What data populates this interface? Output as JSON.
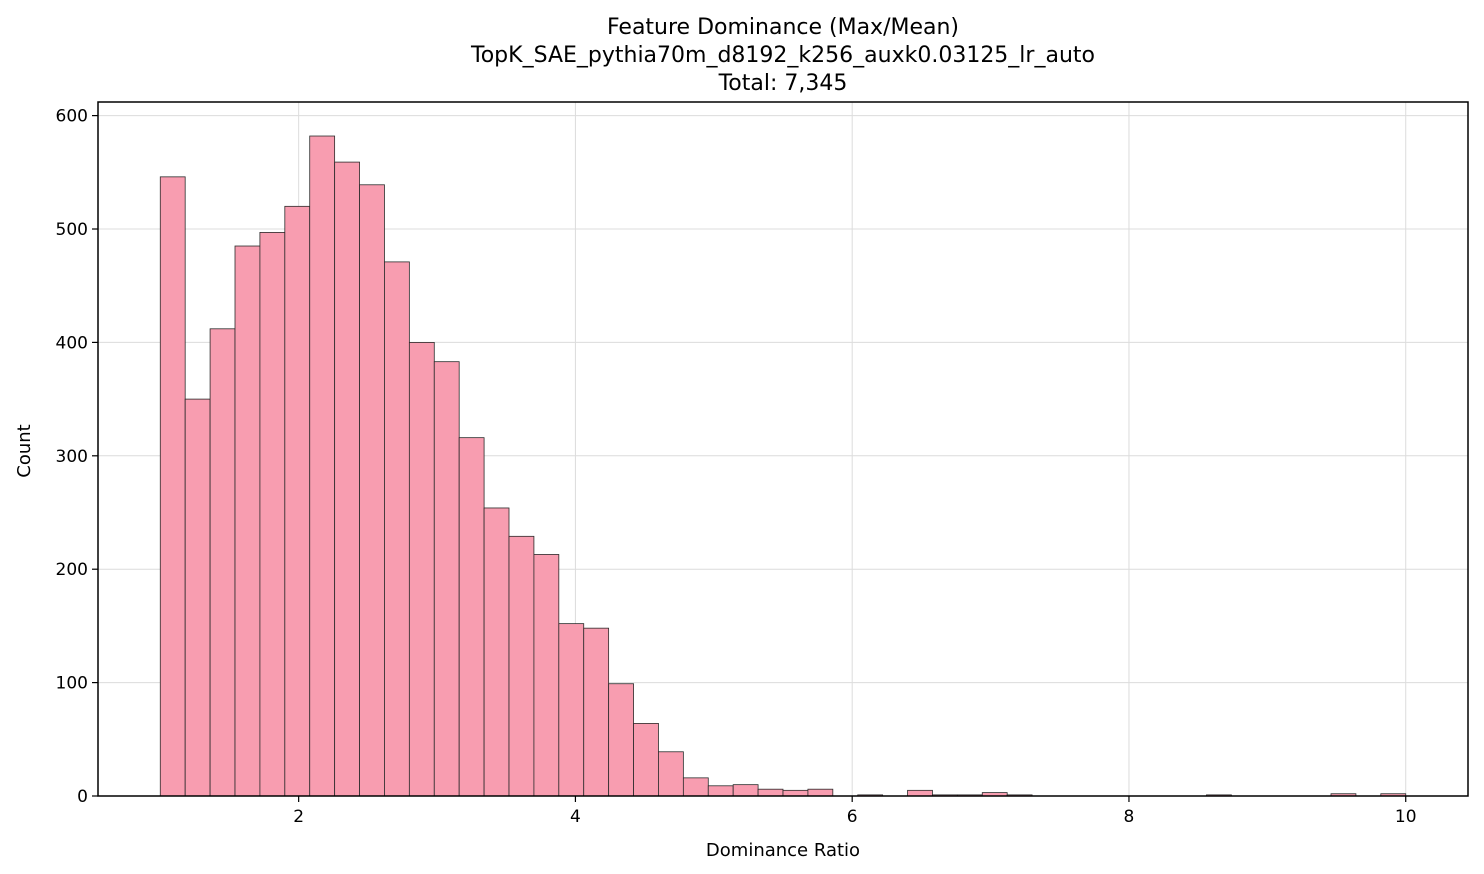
{
  "chart_data": {
    "type": "bar",
    "title_lines": [
      "Feature Dominance (Max/Mean)",
      "TopK_SAE_pythia70m_d8192_k256_auxk0.03125_lr_auto",
      "Total: 7,345"
    ],
    "xlabel": "Dominance Ratio",
    "ylabel": "Count",
    "xlim": [
      0.55,
      10.45
    ],
    "ylim": [
      0,
      612
    ],
    "xticks": [
      2,
      4,
      6,
      8,
      10
    ],
    "yticks": [
      0,
      100,
      200,
      300,
      400,
      500,
      600
    ],
    "grid": true,
    "bar_color": "#f89db0",
    "edge_color": "#2b2b2b",
    "bin_start": 1.0,
    "bin_width": 0.18,
    "values": [
      546,
      350,
      412,
      485,
      497,
      520,
      582,
      559,
      539,
      471,
      400,
      383,
      316,
      254,
      229,
      213,
      152,
      148,
      99,
      64,
      39,
      16,
      9,
      10,
      6,
      5,
      6,
      0,
      1,
      0,
      5,
      1,
      1,
      3,
      1,
      0,
      0,
      0,
      0,
      0,
      0,
      0,
      1,
      0,
      0,
      0,
      0,
      2,
      0,
      2,
      0,
      0
    ]
  }
}
